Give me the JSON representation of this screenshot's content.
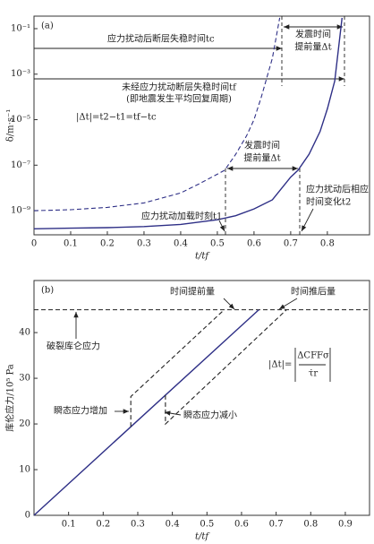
{
  "chart_data": [
    {
      "type": "line",
      "panel": "(a)",
      "x_label": "t/tf",
      "y_label": "δ/m·s⁻¹",
      "xlim": [
        0,
        0.915
      ],
      "xticks": [
        0,
        0.1,
        0.2,
        0.3,
        0.4,
        0.5,
        0.6,
        0.7,
        0.8
      ],
      "ylim": [
        8.7e-11,
        0.355
      ],
      "log_y": true,
      "yticks": [
        {
          "value": 0.1,
          "label": "10⁻¹"
        },
        {
          "value": 0.001,
          "label": "10⁻³"
        },
        {
          "value": 1e-05,
          "label": "10⁻⁵"
        },
        {
          "value": 1e-07,
          "label": "10⁻⁷"
        },
        {
          "value": 1e-09,
          "label": "10⁻⁹"
        }
      ],
      "series": [
        {
          "color": "#2e2f86",
          "style": "solid",
          "x": [
            0,
            0.1,
            0.2,
            0.3,
            0.4,
            0.5,
            0.55,
            0.6,
            0.65,
            0.7,
            0.72,
            0.75,
            0.78,
            0.8,
            0.82,
            0.84
          ],
          "values": [
            1.6e-10,
            1.7e-10,
            1.8e-10,
            2e-10,
            2.5e-10,
            4e-10,
            6e-10,
            1.2e-09,
            3e-09,
            3e-08,
            6e-08,
            3e-07,
            3e-06,
            3e-05,
            0.0005,
            0.3
          ]
        },
        {
          "color": "#2e2f86",
          "style": "dashed",
          "x": [
            0,
            0.1,
            0.2,
            0.3,
            0.4,
            0.45,
            0.5,
            0.52,
            0.55,
            0.58,
            0.6,
            0.62,
            0.65,
            0.67
          ],
          "values": [
            1e-09,
            1.1e-09,
            1.4e-09,
            2.2e-09,
            6e-09,
            1.5e-08,
            4e-08,
            6e-08,
            3e-07,
            2e-06,
            1e-05,
            0.0001,
            0.005,
            0.3
          ]
        }
      ],
      "annotations": [
        "应力扰动后断层失稳时间tc",
        "发震时间",
        "提前量Δt",
        "未经应力扰动断层失稳时间tf",
        "(即地震发生平均回复周期)",
        "|Δt|=t2−t1=tf−tc",
        "发震时间",
        "提前量Δt",
        "应力扰动后相应",
        "时间变化t2",
        "应力扰动加载时刻t1"
      ]
    },
    {
      "type": "line",
      "panel": "(b)",
      "x_label": "t/tf",
      "y_label": "库伦应力/10⁵ Pa",
      "xlim": [
        0,
        0.97
      ],
      "xticks": [
        0.1,
        0.2,
        0.3,
        0.4,
        0.5,
        0.6,
        0.7,
        0.8,
        0.9
      ],
      "ylim": [
        0,
        51.4
      ],
      "yticks": [
        0,
        10,
        20,
        30,
        40
      ],
      "threshold": 45,
      "series": [
        {
          "color": "#2e2f86",
          "style": "solid",
          "x": [
            0,
            0.65
          ],
          "values": [
            0,
            45
          ]
        },
        {
          "color": "#222222",
          "style": "dashed",
          "x": [
            0.28,
            0.28,
            0.55
          ],
          "values": [
            19.4,
            26,
            45
          ]
        },
        {
          "color": "#222222",
          "style": "dashed",
          "x": [
            0.38,
            0.38,
            0.73
          ],
          "values": [
            26.3,
            20,
            45
          ]
        }
      ],
      "annotations": [
        "时间提前量",
        "时间推后量",
        "破裂库仑应力",
        "瞬态应力增加",
        "瞬态应力减小",
        "|Δt|=",
        "ΔCFFσ",
        "τ̇r"
      ]
    }
  ]
}
